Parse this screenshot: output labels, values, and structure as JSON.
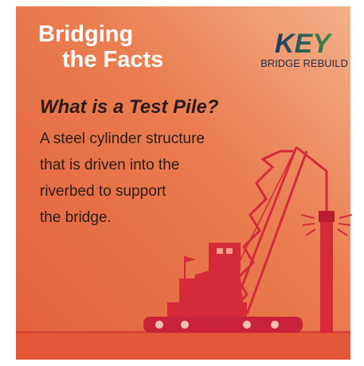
{
  "header": {
    "title_lines": [
      "Bridging",
      "the Facts"
    ]
  },
  "logo": {
    "mark": "KEY",
    "text": "BRIDGE REBUILD"
  },
  "content": {
    "question": "What is a Test Pile?",
    "body_lines": [
      "A steel cylinder structure",
      "that is driven into the",
      "riverbed to support",
      "the bridge."
    ]
  }
}
